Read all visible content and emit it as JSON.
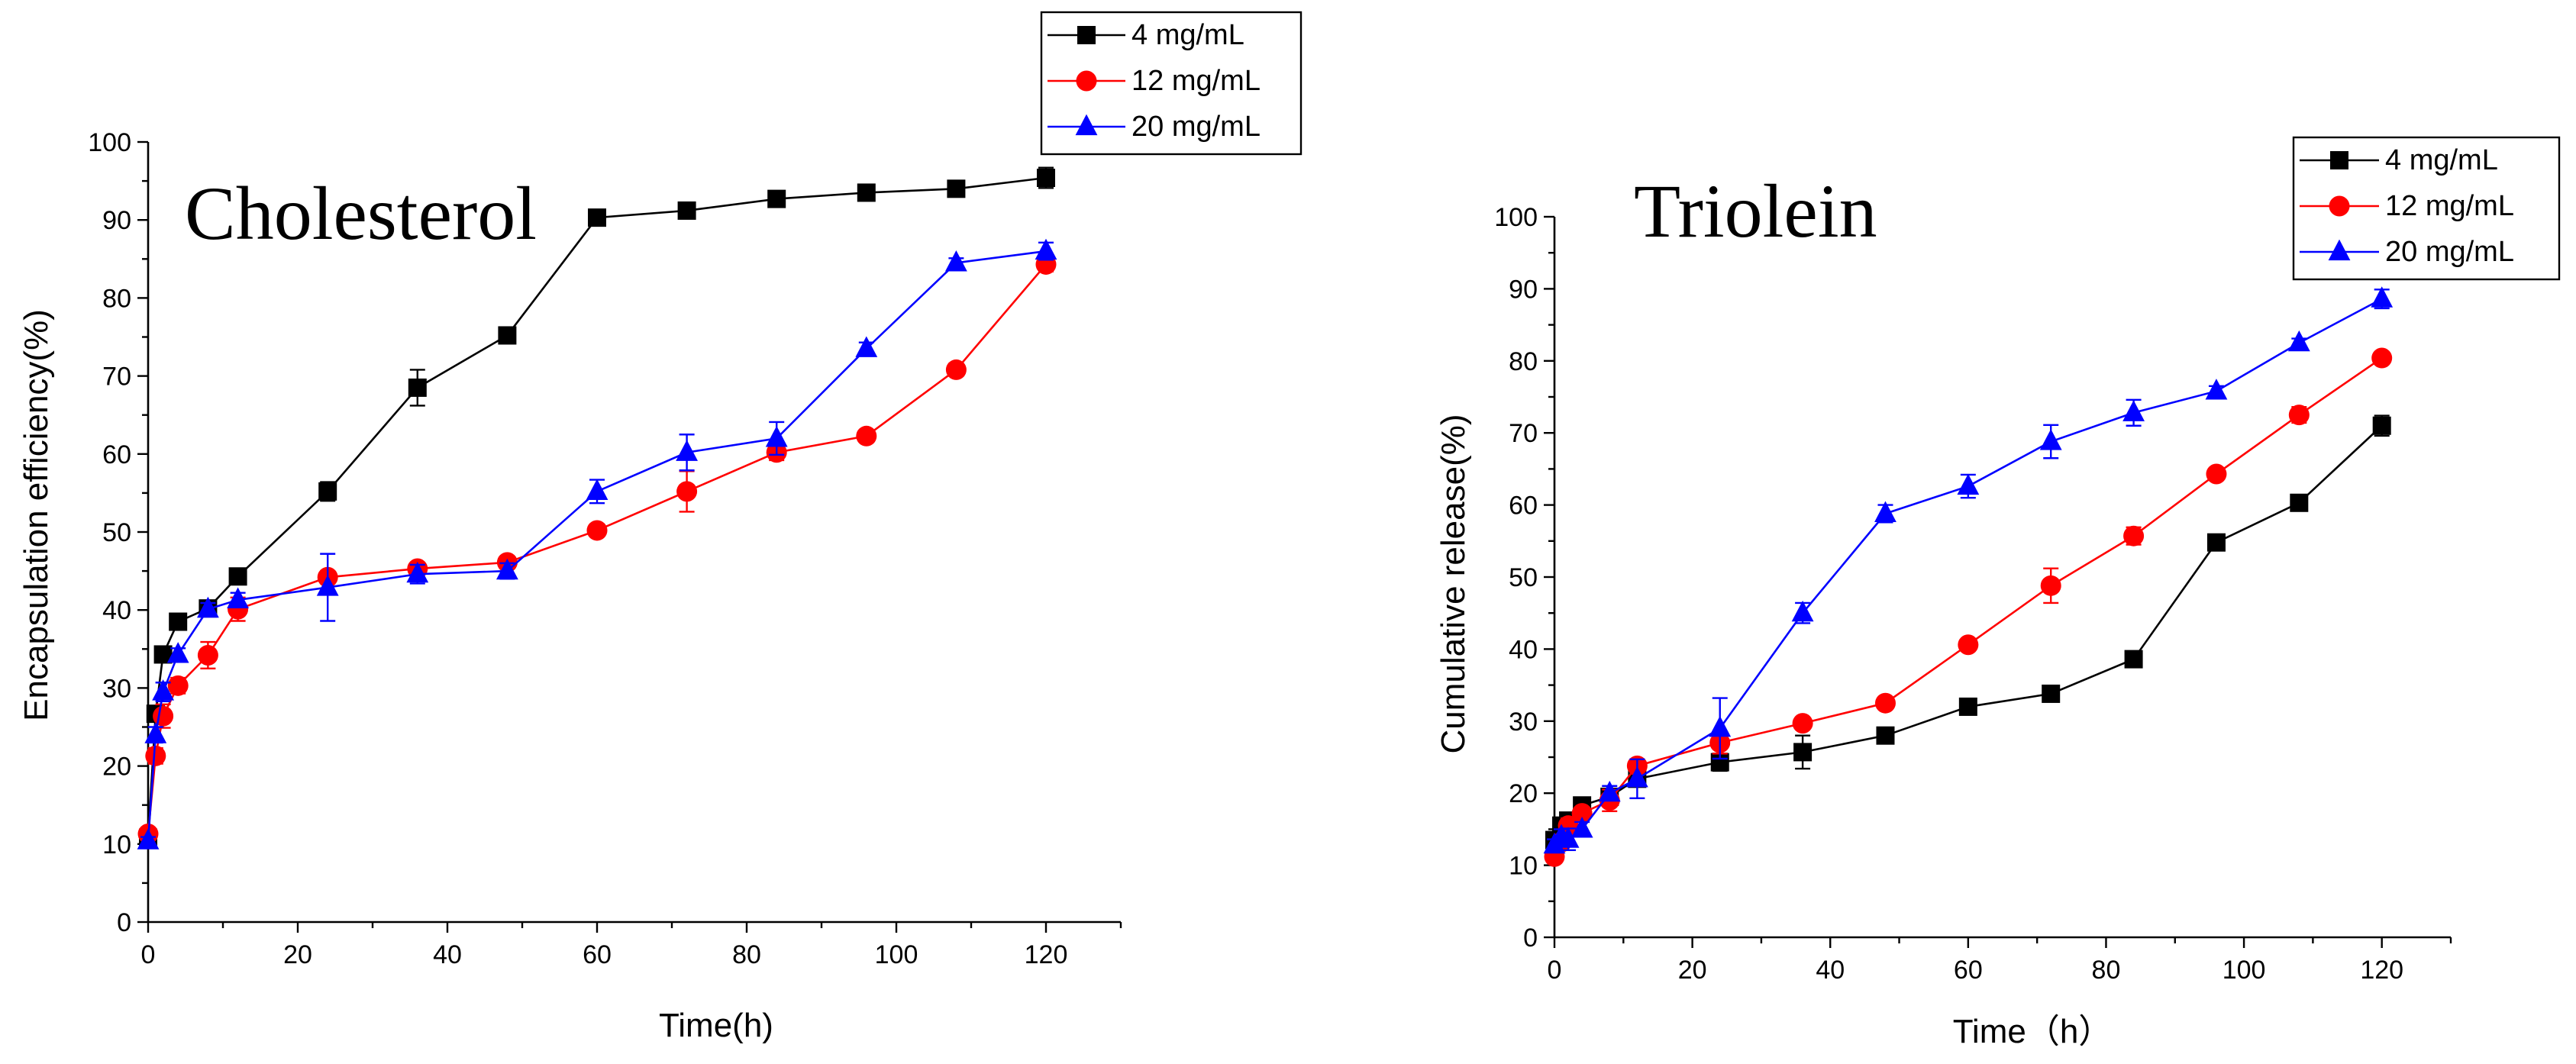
{
  "chart_data": [
    {
      "type": "line",
      "title": "Cholesterol",
      "xlabel": "Time(h)",
      "ylabel": "Encapsulation efficiency(%)",
      "xlim": [
        0,
        130
      ],
      "ylim": [
        0,
        100
      ],
      "xticks": [
        0,
        20,
        40,
        60,
        80,
        100,
        120
      ],
      "yticks": [
        0,
        10,
        20,
        30,
        40,
        50,
        60,
        70,
        80,
        90,
        100
      ],
      "legend_position": "top-right",
      "x": [
        0,
        1,
        2,
        4,
        8,
        12,
        24,
        36,
        48,
        60,
        72,
        84,
        96,
        108,
        120
      ],
      "series": [
        {
          "name": "4 mg/mL",
          "color": "#000000",
          "marker": "square",
          "values": [
            10.8,
            26.7,
            34.3,
            38.5,
            40.2,
            44.3,
            55.2,
            68.5,
            75.2,
            90.3,
            91.2,
            92.7,
            93.5,
            94.0,
            95.4
          ],
          "errors": [
            0.8,
            1.0,
            1.0,
            0.9,
            0.8,
            0.9,
            1.2,
            2.3,
            0.9,
            0.5,
            0.5,
            0.5,
            0.9,
            0.5,
            1.3
          ]
        },
        {
          "name": "12 mg/mL",
          "color": "#ff0000",
          "marker": "circle",
          "values": [
            11.3,
            21.3,
            26.4,
            30.3,
            34.2,
            40.1,
            44.2,
            45.3,
            46.1,
            50.2,
            55.2,
            60.2,
            62.3,
            70.8,
            84.3
          ],
          "errors": [
            0.6,
            1.0,
            1.5,
            1.0,
            1.7,
            1.5,
            0.8,
            0.6,
            0.7,
            0.5,
            2.6,
            1.0,
            0.5,
            0.8,
            0.9
          ]
        },
        {
          "name": "20 mg/mL",
          "color": "#0000ff",
          "marker": "triangle",
          "values": [
            10.4,
            24.0,
            29.5,
            34.3,
            40.1,
            41.3,
            42.9,
            44.6,
            45.0,
            55.2,
            60.2,
            62.0,
            73.5,
            84.5,
            86.0
          ],
          "errors": [
            0.5,
            1.0,
            1.2,
            0.8,
            0.8,
            0.9,
            4.3,
            1.2,
            1.0,
            1.5,
            2.3,
            2.1,
            0.8,
            0.6,
            1.1
          ]
        }
      ]
    },
    {
      "type": "line",
      "title": "Triolein",
      "xlabel": "Time（h）",
      "ylabel": "Cumulative release(%)",
      "xlim": [
        0,
        130
      ],
      "ylim": [
        0,
        100
      ],
      "xticks": [
        0,
        20,
        40,
        60,
        80,
        100,
        120
      ],
      "yticks": [
        0,
        10,
        20,
        30,
        40,
        50,
        60,
        70,
        80,
        90,
        100
      ],
      "legend_position": "top-right",
      "x": [
        0,
        1,
        2,
        4,
        8,
        12,
        24,
        36,
        48,
        60,
        72,
        84,
        96,
        108,
        120
      ],
      "series": [
        {
          "name": "4 mg/mL",
          "color": "#000000",
          "marker": "square",
          "values": [
            13.5,
            15.5,
            16.2,
            18.3,
            19.5,
            22.0,
            24.3,
            25.7,
            28.0,
            32.0,
            33.8,
            38.6,
            54.8,
            60.3,
            71.0
          ],
          "errors": [
            0.8,
            0.8,
            0.8,
            0.8,
            0.8,
            0.9,
            1.2,
            2.3,
            0.6,
            0.6,
            0.7,
            0.5,
            0.8,
            0.6,
            1.4
          ]
        },
        {
          "name": "12 mg/mL",
          "color": "#ff0000",
          "marker": "circle",
          "values": [
            11.2,
            13.2,
            15.5,
            17.2,
            19.0,
            23.8,
            27.0,
            29.7,
            32.5,
            40.6,
            48.8,
            55.7,
            64.3,
            72.5,
            80.4
          ],
          "errors": [
            0.8,
            1.0,
            1.0,
            0.8,
            1.5,
            0.8,
            1.5,
            0.7,
            0.6,
            0.6,
            2.4,
            1.2,
            0.6,
            1.1,
            0.5
          ]
        },
        {
          "name": "20 mg/mL",
          "color": "#0000ff",
          "marker": "triangle",
          "values": [
            12.8,
            14.0,
            13.6,
            15.0,
            20.0,
            22.0,
            29.0,
            45.0,
            58.8,
            62.6,
            68.8,
            72.8,
            75.8,
            82.5,
            88.6
          ],
          "errors": [
            0.8,
            1.0,
            1.5,
            1.0,
            1.0,
            2.7,
            4.2,
            1.4,
            1.2,
            1.6,
            2.3,
            1.8,
            0.7,
            0.6,
            1.3
          ]
        }
      ]
    }
  ]
}
